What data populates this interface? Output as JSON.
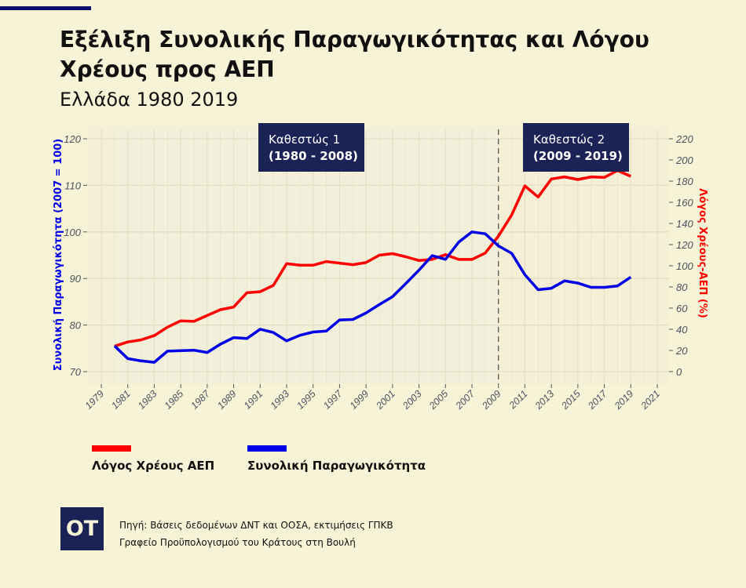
{
  "header": {
    "title": "Εξέλιξη Συνολικής Παραγωγικότητας και Λόγου Χρέους προς ΑΕΠ",
    "subtitle": "Ελλάδα 1980 2019"
  },
  "chart_data": {
    "type": "line",
    "x": [
      1980,
      1981,
      1982,
      1983,
      1984,
      1985,
      1986,
      1987,
      1988,
      1989,
      1990,
      1991,
      1992,
      1993,
      1994,
      1995,
      1996,
      1997,
      1998,
      1999,
      2000,
      2001,
      2002,
      2003,
      2004,
      2005,
      2006,
      2007,
      2008,
      2009,
      2010,
      2011,
      2012,
      2013,
      2014,
      2015,
      2016,
      2017,
      2018,
      2019
    ],
    "series": [
      {
        "name": "Λόγος Χρέους ΑΕΠ",
        "axis": "right",
        "color": "#ff0000",
        "values": [
          24,
          28,
          30,
          34,
          42,
          48,
          47.5,
          53,
          58.5,
          61,
          74.5,
          75.5,
          81.5,
          102,
          100.5,
          100.5,
          104,
          102.5,
          101,
          103,
          110,
          111.5,
          108.5,
          105,
          106,
          110.5,
          106,
          106,
          112,
          128,
          148,
          175.5,
          165,
          182,
          184,
          181.5,
          184,
          183.5,
          190,
          184.5
        ]
      },
      {
        "name": "Συνολική Παραγωγικότητα",
        "axis": "left",
        "color": "#0000e6",
        "values": [
          75.5,
          72.8,
          72.3,
          72.0,
          74.4,
          74.5,
          74.6,
          74.1,
          75.9,
          77.3,
          77.1,
          79.1,
          78.4,
          76.6,
          77.8,
          78.5,
          78.7,
          81.1,
          81.2,
          82.6,
          84.4,
          86.1,
          88.9,
          91.8,
          94.9,
          94.1,
          97.8,
          100,
          99.6,
          97.0,
          95.4,
          90.8,
          87.6,
          87.9,
          89.5,
          89.0,
          88.1,
          88.1,
          88.4,
          90.3
        ]
      }
    ],
    "ylabel_left": "Συνολική Παραγωγικότητα (2007 = 100)",
    "ylabel_right": "Λόγος Χρέους-ΑΕΠ (%)",
    "ylim_left": [
      70,
      120
    ],
    "ylim_right": [
      0,
      220
    ],
    "xlim": [
      1979,
      2021
    ],
    "xticks": [
      "1979",
      "1981",
      "1983",
      "1985",
      "1987",
      "1989",
      "1991",
      "1993",
      "1995",
      "1997",
      "1999",
      "2001",
      "2003",
      "2005",
      "2007",
      "2009",
      "2011",
      "2013",
      "2015",
      "2017",
      "2019",
      "2021"
    ],
    "yticks_left": [
      "70",
      "80",
      "90",
      "100",
      "110",
      "120"
    ],
    "yticks_right": [
      "0",
      "20",
      "40",
      "60",
      "80",
      "100",
      "120",
      "140",
      "160",
      "180",
      "200",
      "220"
    ],
    "grid": true,
    "vline": 2009,
    "annotations": [
      {
        "line1": "Καθεστώς 1",
        "line2": "(1980 - 2008)"
      },
      {
        "line1": "Καθεστώς 2",
        "line2": "(2009 - 2019)"
      }
    ],
    "legend_placement": "bottom-left"
  },
  "footer": {
    "logo": "OT",
    "source_line1": "Πηγή: Βάσεις δεδομένων ΔΝΤ και  ΟΟΣΑ, εκτιμήσεις ΓΠΚΒ",
    "source_line2": "Γραφείο Προϋπολογισμού του Κράτους στη Βουλή"
  }
}
